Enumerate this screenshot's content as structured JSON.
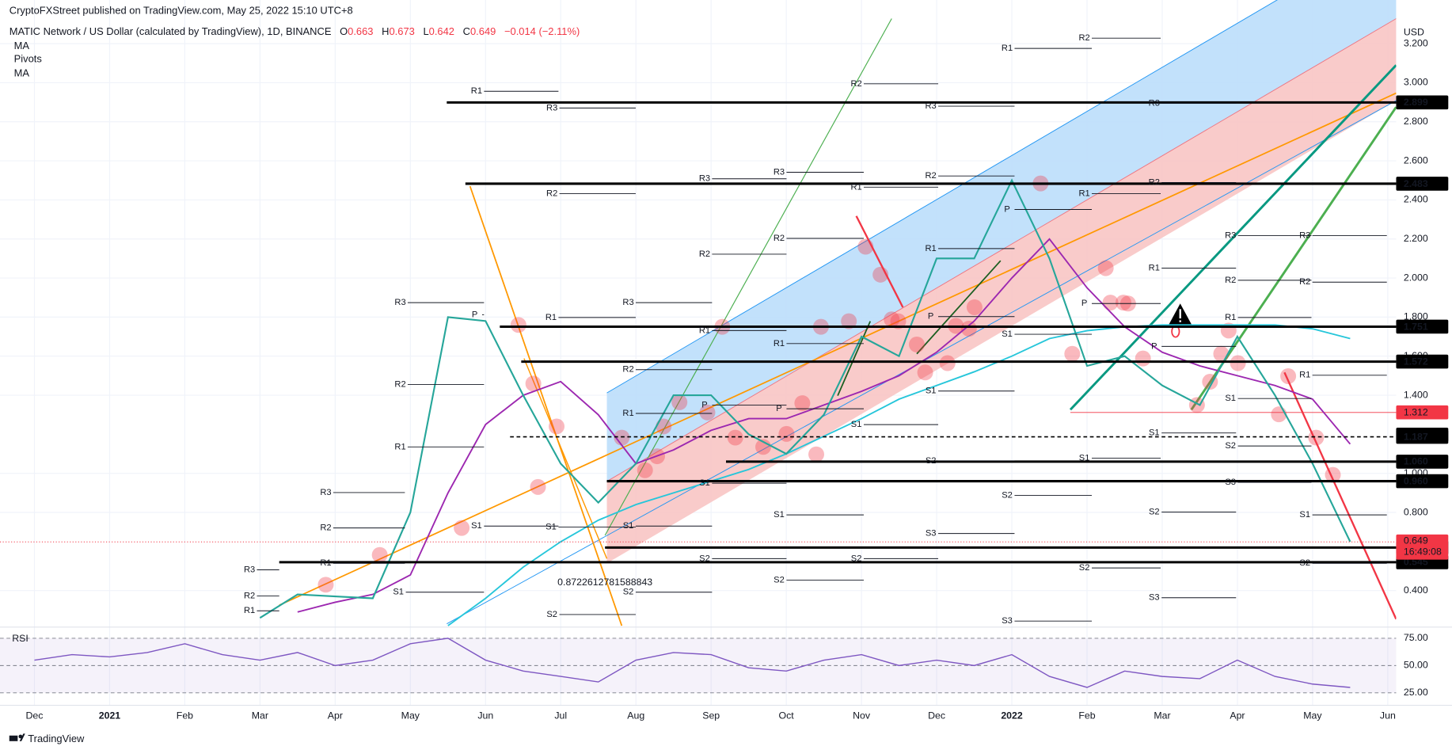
{
  "chart_data": {
    "type": "line",
    "publisher": "CryptoFXStreet published on TradingView.com, May 25, 2022 15:10 UTC+8",
    "title": "MATIC Network / US Dollar (calculated by TradingView), 1D, BINANCE",
    "ohlc_labels": [
      "O",
      "H",
      "L",
      "C"
    ],
    "ohlc": [
      0.663,
      0.673,
      0.642,
      0.649
    ],
    "change": "−0.014 (−2.11%)",
    "currency": "USD",
    "color": "#26a69a",
    "categories": [
      "Dec",
      null,
      "2021",
      null,
      "Feb",
      null,
      "Mar",
      null,
      "Apr",
      null,
      "May",
      null,
      "Jun",
      null,
      "Jul",
      null,
      "Aug",
      null,
      "Sep",
      null,
      "Oct",
      null,
      "Nov",
      null,
      "Dec",
      null,
      "2022",
      null,
      "Feb",
      null,
      "Mar",
      null,
      "Apr",
      null,
      "May",
      null,
      "Jun"
    ],
    "values": [
      null,
      null,
      null,
      null,
      null,
      null,
      0.26,
      0.38,
      0.37,
      0.36,
      0.8,
      1.8,
      1.78,
      1.4,
      1.05,
      0.85,
      1.05,
      1.4,
      1.4,
      1.2,
      1.1,
      1.3,
      1.7,
      1.6,
      2.1,
      2.1,
      2.5,
      2.1,
      1.55,
      1.6,
      1.45,
      1.35,
      1.7,
      1.4,
      1.05,
      0.65,
      null
    ],
    "series": [
      {
        "name": "MA",
        "color": "#9c27b0",
        "values": [
          null,
          null,
          null,
          null,
          null,
          null,
          null,
          0.29,
          0.34,
          0.38,
          0.48,
          0.9,
          1.25,
          1.4,
          1.47,
          1.3,
          1.05,
          1.12,
          1.22,
          1.28,
          1.28,
          1.35,
          1.42,
          1.5,
          1.62,
          1.78,
          2.0,
          2.2,
          1.95,
          1.75,
          1.62,
          1.55,
          1.5,
          1.45,
          1.38,
          1.15,
          null
        ]
      },
      {
        "name": "MA",
        "color": "#26c6da",
        "values": [
          null,
          null,
          null,
          null,
          null,
          null,
          null,
          null,
          null,
          null,
          null,
          0.22,
          0.36,
          0.52,
          0.65,
          0.76,
          0.84,
          0.9,
          0.96,
          1.02,
          1.1,
          1.19,
          1.28,
          1.38,
          1.45,
          1.52,
          1.6,
          1.69,
          1.73,
          1.75,
          1.76,
          1.76,
          1.76,
          1.76,
          1.74,
          1.69,
          null
        ]
      }
    ],
    "pivots": {
      "name": "Pivots",
      "labels": [
        "R1",
        "R3",
        "R2",
        "R3",
        "P",
        "R1",
        "R2",
        "R1",
        "R3",
        "R2",
        "S1",
        "S1",
        "R3",
        "R1",
        "R2",
        "R1",
        "S1",
        "S2",
        "S1",
        "S2",
        "S2",
        "R3",
        "R2",
        "R1",
        "R1",
        "P",
        "S1",
        "R3",
        "R2",
        "R3",
        "R2",
        "R1",
        "P",
        "S1",
        "S2",
        "R2",
        "R1",
        "S1",
        "S2",
        "R3",
        "R2",
        "R1",
        "P",
        "S1",
        "S2",
        "S3",
        "R1",
        "R2",
        "R1",
        "P",
        "S1",
        "S2",
        "S1",
        "S2",
        "S3",
        "R3",
        "R2",
        "R1",
        "P",
        "P",
        "S1",
        "S2",
        "S3",
        "R3",
        "R2",
        "R1",
        "S1",
        "S2",
        "S3",
        "R3",
        "R2",
        "R1",
        "S1",
        "S2"
      ]
    },
    "annotation": "0.8722612781588843",
    "annotation_color": "#2196f3",
    "ylim": [
      0.22,
      3.29
    ],
    "yticks": [
      {
        "value": 3.2,
        "label": "3.200"
      },
      {
        "value": 3,
        "label": "3.000"
      },
      {
        "value": 2.8,
        "label": "2.800"
      },
      {
        "value": 2.6,
        "label": "2.600"
      },
      {
        "value": 2.4,
        "label": "2.400"
      },
      {
        "value": 2.2,
        "label": "2.200"
      },
      {
        "value": 2,
        "label": "2.000"
      },
      {
        "value": 1.8,
        "label": "1.800"
      },
      {
        "value": 1.6,
        "label": "1.600"
      },
      {
        "value": 1.4,
        "label": "1.400"
      },
      {
        "value": 1,
        "label": "1.000"
      },
      {
        "value": 0.8,
        "label": "0.800"
      },
      {
        "value": 0.4,
        "label": "0.400"
      }
    ],
    "grid": true,
    "levels": [
      2.899,
      2.483,
      1.751,
      1.572,
      1.198,
      1.187,
      {
        "value": 1.06,
        "label": "1.060"
      },
      {
        "value": 0.96,
        "label": "0.960"
      },
      {
        "value": 0.62,
        "label": "0.620"
      },
      0.545
    ],
    "level_color": "#000000",
    "alert_level": 1.312,
    "alert_color": "#f23645",
    "last_price": 0.649,
    "countdown": "16:49:08",
    "rsi": {
      "name": "RSI",
      "color": "#7e57c2",
      "ylim": [
        14,
        84
      ],
      "yticks": [
        {
          "value": 75,
          "label": "75.00"
        },
        {
          "value": 50,
          "label": "50.00"
        },
        {
          "value": 25,
          "label": "25.00"
        }
      ],
      "values": [
        55,
        60,
        58,
        62,
        70,
        60,
        55,
        62,
        50,
        55,
        70,
        75,
        55,
        45,
        40,
        35,
        55,
        62,
        60,
        48,
        45,
        55,
        60,
        50,
        55,
        50,
        60,
        40,
        30,
        45,
        40,
        38,
        55,
        40,
        33,
        30,
        null
      ]
    },
    "brand": "TradingView"
  }
}
